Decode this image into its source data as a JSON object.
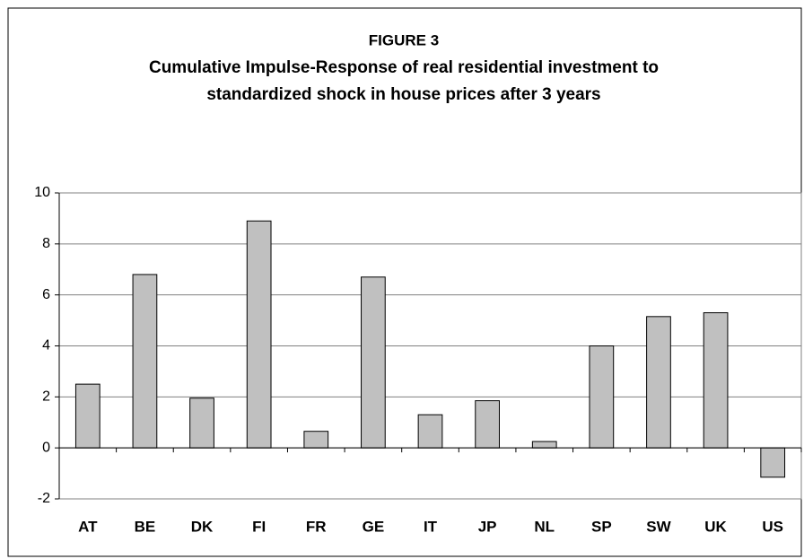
{
  "chart_data": {
    "type": "bar",
    "title": [
      "FIGURE 3",
      "Cumulative Impulse-Response of real residential investment to",
      "standardized shock in house prices after 3 years"
    ],
    "categories": [
      "AT",
      "BE",
      "DK",
      "FI",
      "FR",
      "GE",
      "IT",
      "JP",
      "NL",
      "SP",
      "SW",
      "UK",
      "US"
    ],
    "values": [
      2.5,
      6.8,
      1.95,
      8.9,
      0.65,
      6.7,
      1.3,
      1.85,
      0.25,
      4.0,
      5.15,
      5.3,
      -1.15
    ],
    "color": "#c0c0c0",
    "ylim": [
      -2,
      10
    ],
    "yticks": [
      -2,
      0,
      2,
      4,
      6,
      8,
      10
    ],
    "grid": true
  }
}
